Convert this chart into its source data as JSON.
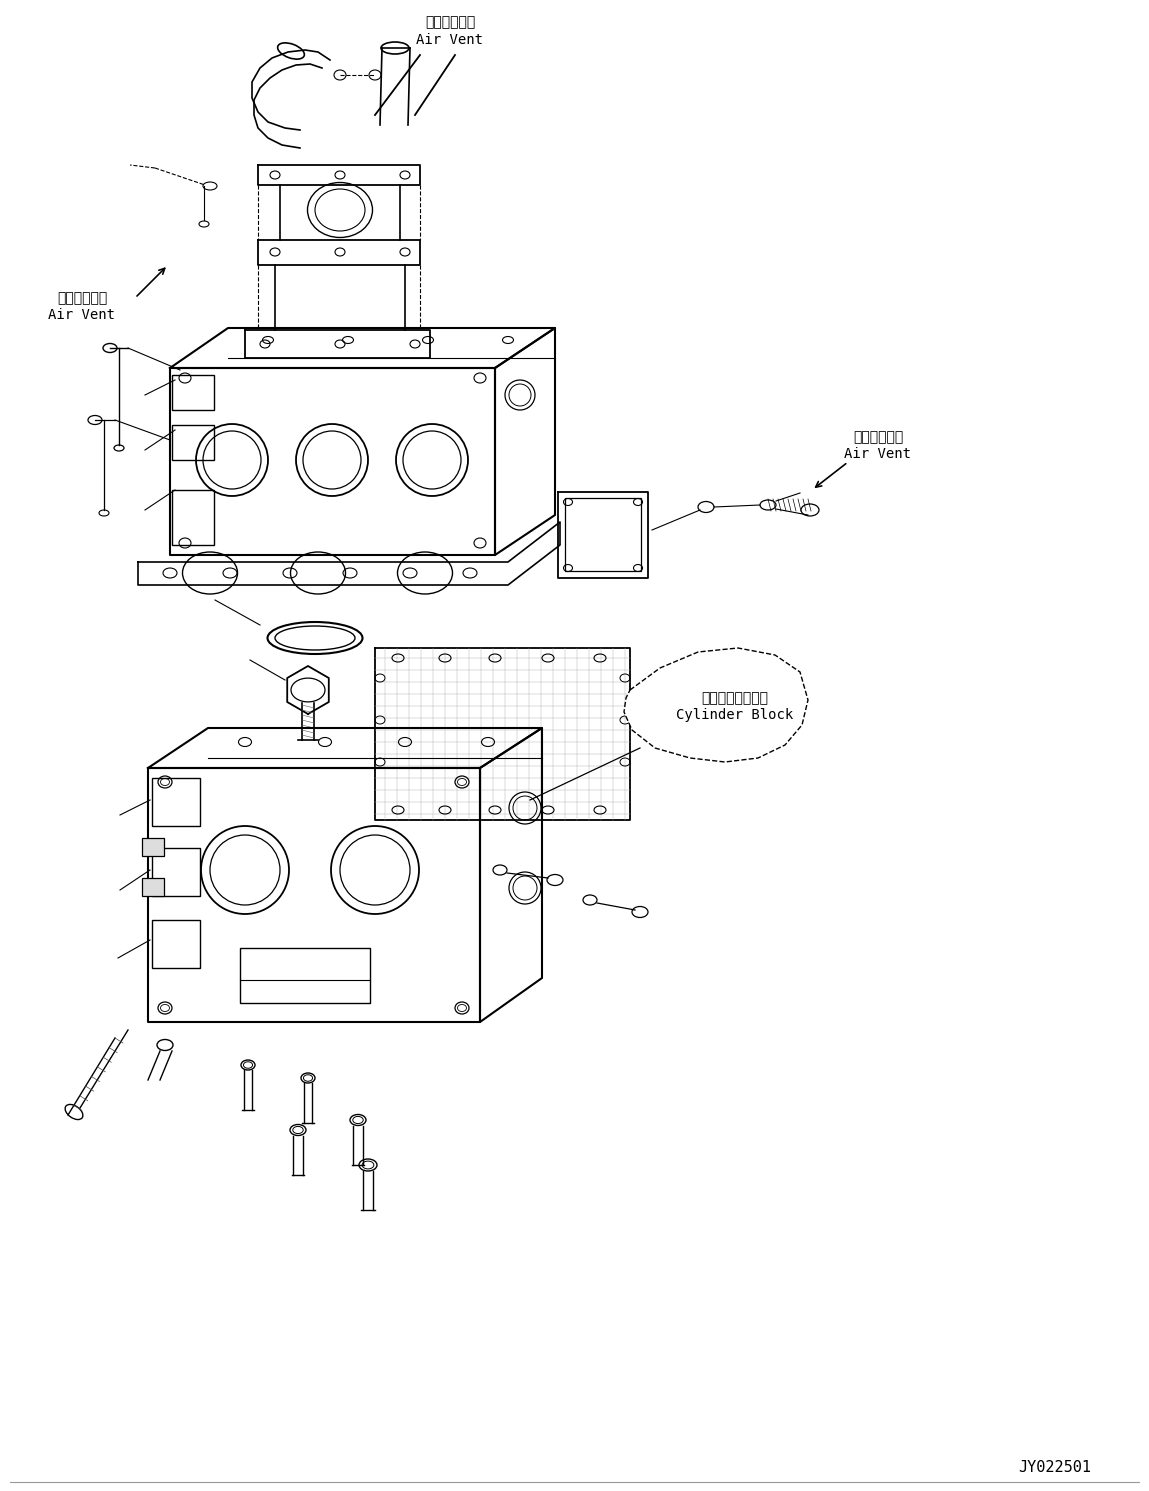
{
  "bg_color": "#ffffff",
  "line_color": "#000000",
  "fig_width": 11.49,
  "fig_height": 14.91,
  "watermark": "JY022501",
  "labels": {
    "air_vent_top_ja": "エアーベント",
    "air_vent_top_en": "Air Vent",
    "air_vent_left_ja": "エアーベント",
    "air_vent_left_en": "Air Vent",
    "air_vent_right_ja": "エアーベント",
    "air_vent_right_en": "Air Vent",
    "cylinder_block_ja": "シリンダブロック",
    "cylinder_block_en": "Cylinder Block"
  }
}
